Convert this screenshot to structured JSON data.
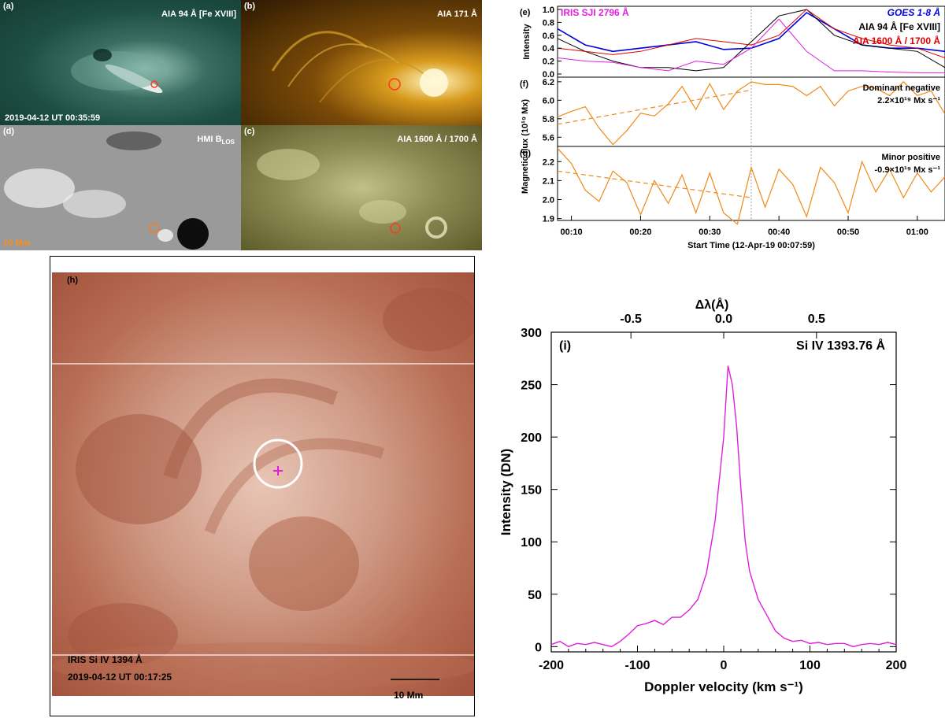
{
  "panel_a": {
    "letter": "(a)",
    "title": "AIA 94 Å [Fe XVIII]",
    "timestamp": "2019-04-12 UT 00:35:59"
  },
  "panel_b": {
    "letter": "(b)",
    "title": "AIA 171 Å"
  },
  "panel_d": {
    "letter": "(d)",
    "title_main": "HMI B",
    "title_sub": "LOS",
    "scale": "10 Mm"
  },
  "panel_c": {
    "letter": "(c)",
    "title": "AIA 1600 Å / 1700 Å"
  },
  "panel_h": {
    "letter": "(h)",
    "instrument": "IRIS Si IV 1394 Å",
    "timestamp": "2019-04-12 UT 00:17:25",
    "scale": "10 Mm"
  },
  "panel_e": {
    "letter": "(e)",
    "ylabel": "Intensity",
    "legend": [
      "IRIS SJI 2796 Å",
      "GOES 1-8 Å",
      "AIA 94 Å [Fe XVIII]",
      "AIA 1600 Å / 1700 Å"
    ],
    "yticks": [
      "1.0",
      "0.8",
      "0.6",
      "0.4",
      "0.2",
      "0.0"
    ],
    "colors": {
      "iris": "#e01ee0",
      "goes": "#0000dd",
      "aia94": "#000000",
      "aia1600": "#dd0000"
    }
  },
  "panel_f": {
    "letter": "(f)",
    "yticks": [
      "6.2",
      "6.0",
      "5.8",
      "5.6"
    ],
    "note_line1": "Dominant negative",
    "note_line2": "2.2×10¹⁹ Mx s⁻¹"
  },
  "panel_g": {
    "letter": "(g)",
    "yticks": [
      "2.2",
      "2.1",
      "2.0",
      "1.9"
    ],
    "note_line1": "Minor positive",
    "note_line2": "-0.9×10¹⁹ Mx s⁻¹"
  },
  "flux_ylabel": "Magnetic flux (10¹⁹ Mx)",
  "time_axis": {
    "ticks": [
      "00:10",
      "00:20",
      "00:30",
      "00:40",
      "00:50",
      "01:00"
    ],
    "label": "Start Time (12-Apr-19 00:07:59)"
  },
  "chart_data": [
    {
      "type": "line",
      "id": "panel_e_light_curves",
      "x_minutes_since_start": [
        0,
        4,
        8,
        12,
        16,
        20,
        24,
        28,
        32,
        36,
        40,
        44,
        48,
        52,
        56
      ],
      "series": [
        {
          "name": "GOES 1-8 Å",
          "values": [
            0.7,
            0.45,
            0.35,
            0.4,
            0.45,
            0.5,
            0.38,
            0.4,
            0.55,
            0.95,
            0.7,
            0.45,
            0.4,
            0.4,
            0.35
          ]
        },
        {
          "name": "AIA 94 Å [Fe XVIII]",
          "values": [
            0.55,
            0.35,
            0.2,
            0.1,
            0.1,
            0.05,
            0.1,
            0.5,
            0.9,
            1.0,
            0.6,
            0.45,
            0.4,
            0.35,
            0.1
          ]
        },
        {
          "name": "AIA 1600 Å / 1700 Å",
          "values": [
            0.4,
            0.35,
            0.3,
            0.35,
            0.45,
            0.55,
            0.5,
            0.45,
            0.6,
            1.0,
            0.7,
            0.55,
            0.45,
            0.4,
            0.25
          ]
        },
        {
          "name": "IRIS SJI 2796 Å",
          "values": [
            0.25,
            0.2,
            0.18,
            0.1,
            0.05,
            0.2,
            0.15,
            0.4,
            0.85,
            0.35,
            0.05,
            0.05,
            0.03,
            0.02,
            0.02
          ]
        }
      ],
      "ylim": [
        0,
        1.0
      ]
    },
    {
      "type": "line",
      "id": "panel_f_negative_flux",
      "x_minutes_since_start": [
        0,
        2,
        4,
        6,
        8,
        10,
        12,
        14,
        16,
        18,
        20,
        22,
        24,
        26,
        28,
        30,
        32,
        34,
        36,
        38,
        40,
        42,
        44,
        46,
        48,
        50,
        52,
        54,
        56
      ],
      "values": [
        5.82,
        5.88,
        5.93,
        5.7,
        5.52,
        5.67,
        5.86,
        5.83,
        5.96,
        6.15,
        5.9,
        6.18,
        5.9,
        6.1,
        6.2,
        6.17,
        6.17,
        6.15,
        6.05,
        6.15,
        5.94,
        6.1,
        6.15,
        6.13,
        6.05,
        6.2,
        6.05,
        6.1,
        5.85
      ],
      "trend": {
        "from": [
          0,
          5.74
        ],
        "to": [
          28,
          6.11
        ]
      },
      "ylim": [
        5.5,
        6.25
      ]
    },
    {
      "type": "line",
      "id": "panel_g_positive_flux",
      "x_minutes_since_start": [
        0,
        2,
        4,
        6,
        8,
        10,
        12,
        14,
        16,
        18,
        20,
        22,
        24,
        26,
        28,
        30,
        32,
        34,
        36,
        38,
        40,
        42,
        44,
        46,
        48,
        50,
        52,
        54,
        56
      ],
      "values": [
        2.27,
        2.19,
        2.05,
        1.99,
        2.15,
        2.09,
        1.92,
        2.1,
        1.98,
        2.13,
        1.93,
        2.14,
        1.93,
        1.87,
        2.17,
        1.96,
        2.16,
        2.08,
        1.91,
        2.17,
        2.09,
        1.93,
        2.2,
        2.04,
        2.16,
        2.01,
        2.14,
        2.04,
        2.12
      ],
      "trend": {
        "from": [
          0,
          2.15
        ],
        "to": [
          28,
          2.01
        ]
      },
      "ylim": [
        1.89,
        2.28
      ]
    },
    {
      "type": "line",
      "id": "panel_i_spectrum",
      "title": "Si IV 1393.76 Å",
      "letter": "(i)",
      "xlabel": "Doppler velocity (km s⁻¹)",
      "ylabel": "Intensity (DN)",
      "top_xlabel": "Δλ(Å)",
      "xlim": [
        -200,
        200
      ],
      "ylim": [
        -5,
        300
      ],
      "xticks": [
        "-200",
        "-100",
        "0",
        "100",
        "200"
      ],
      "yticks": [
        "0",
        "50",
        "100",
        "150",
        "200",
        "250",
        "300"
      ],
      "top_xticks": [
        "-0.5",
        "0.0",
        "0.5"
      ],
      "x": [
        -200,
        -190,
        -180,
        -170,
        -160,
        -150,
        -140,
        -130,
        -120,
        -110,
        -100,
        -90,
        -80,
        -70,
        -60,
        -50,
        -40,
        -30,
        -20,
        -10,
        0,
        5,
        10,
        15,
        20,
        25,
        30,
        40,
        50,
        60,
        70,
        80,
        90,
        100,
        110,
        120,
        130,
        140,
        150,
        160,
        170,
        180,
        190,
        200
      ],
      "values": [
        2,
        5,
        0,
        3,
        2,
        4,
        2,
        0,
        5,
        12,
        20,
        22,
        25,
        21,
        28,
        28,
        35,
        45,
        70,
        120,
        200,
        268,
        250,
        210,
        150,
        100,
        72,
        45,
        30,
        15,
        8,
        5,
        6,
        3,
        4,
        2,
        3,
        3,
        0,
        2,
        3,
        2,
        4,
        2
      ],
      "color": "#e01ee0"
    }
  ]
}
